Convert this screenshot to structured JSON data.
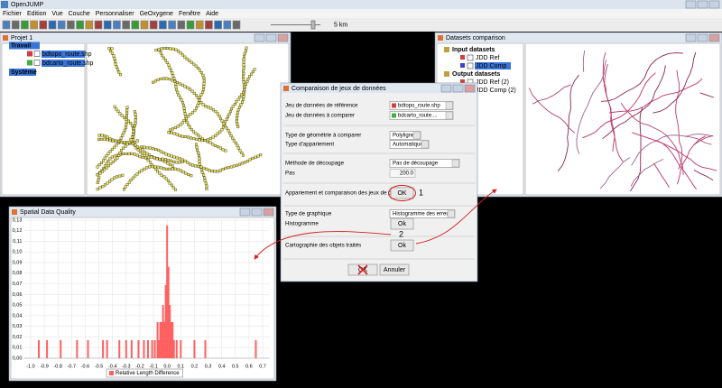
{
  "app": {
    "title": "OpenJUMP",
    "menu": [
      "Fichier",
      "Edition",
      "Vue",
      "Couche",
      "Personnaliser",
      "GeOxygene",
      "Fenêtre",
      "Aide"
    ],
    "scale_label": "5 km"
  },
  "project_window": {
    "title": "Projet 1",
    "category": "Travail",
    "layers": [
      "bdtopo_route.shp",
      "bdcarto_route.shp"
    ],
    "system": "Système"
  },
  "datasets_window": {
    "title": "Datasets comparison",
    "groups": [
      {
        "label": "Input datasets",
        "items": [
          "JDD Ref",
          "JDD Comp"
        ]
      },
      {
        "label": "Output datasets",
        "items": [
          "JDD Ref (2)",
          "JDD Comp (2)"
        ]
      }
    ]
  },
  "dialog": {
    "title": "Comparaison de jeux de données",
    "rows": [
      {
        "label": "Jeu de données de référence",
        "combo": "bdtopo_route.shp"
      },
      {
        "label": "Jeu de données à comparer",
        "combo": "bdcarto_route...."
      },
      {
        "label": "Type de géométrie à comparer",
        "combo": "Polyligne"
      },
      {
        "label": "Type d'appariement",
        "combo": "Automatique"
      },
      {
        "label": "Méthode de découpage",
        "combo": "Pas de découpage"
      },
      {
        "label": "Pas",
        "field": "200.0"
      },
      {
        "label": "Appariement et comparaison des jeux de données",
        "button": "OK"
      },
      {
        "label": "Type de graphique",
        "combo": "Histogramme des erreurs"
      },
      {
        "label": "Histogramme",
        "button": "Ok"
      },
      {
        "label": "Cartographie des objets traités",
        "button": "Ok"
      }
    ],
    "annotations": [
      "1",
      "2"
    ],
    "buttons": [
      "OK",
      "Annuler"
    ]
  },
  "chart_window": {
    "title": "Spatial Data Quality"
  },
  "chart_data": {
    "type": "bar",
    "x": [
      -0.94,
      -0.88,
      -0.78,
      -0.66,
      -0.58,
      -0.47,
      -0.44,
      -0.35,
      -0.3,
      -0.26,
      -0.21,
      -0.17,
      -0.14,
      -0.11,
      -0.09,
      -0.07,
      -0.06,
      -0.05,
      -0.04,
      -0.03,
      -0.02,
      -0.01,
      0,
      0.01,
      0.02,
      0.03,
      0.04,
      0.05,
      0.07,
      0.1,
      0.2,
      0.28,
      0.65
    ],
    "series": [
      {
        "name": "Relative Length Difference",
        "color": "#ff6060",
        "values": [
          0.017,
          0.017,
          0.017,
          0.017,
          0.017,
          0.017,
          0.017,
          0.017,
          0.017,
          0.017,
          0.017,
          0.017,
          0.017,
          0.017,
          0.017,
          0.034,
          0.017,
          0.034,
          0.034,
          0.05,
          0.034,
          0.069,
          0.125,
          0.086,
          0.05,
          0.034,
          0.034,
          0.017,
          0.017,
          0.017,
          0.017,
          0.017,
          0.017
        ]
      }
    ],
    "xlim": [
      -1.05,
      0.75
    ],
    "xticks": [
      {
        "value": -1,
        "label": "-1.0"
      },
      -0.9,
      -0.8,
      -0.7,
      -0.6,
      -0.5,
      -0.4,
      -0.3,
      -0.2,
      -0.1,
      {
        "value": 0,
        "label": "0.0"
      },
      0.1,
      0.2,
      0.3,
      0.4,
      0.5,
      0.6,
      0.7
    ],
    "ylim": [
      0,
      0.135
    ],
    "yticks": [
      {
        "value": 0,
        "label": "0,00"
      },
      {
        "value": 0.01,
        "label": "0,01"
      },
      {
        "value": 0.02,
        "label": "0,02"
      },
      {
        "value": 0.03,
        "label": "0,03"
      },
      {
        "value": 0.04,
        "label": "0,04"
      },
      {
        "value": 0.05,
        "label": "0,05"
      },
      {
        "value": 0.06,
        "label": "0,06"
      },
      {
        "value": 0.07,
        "label": "0,07"
      },
      {
        "value": 0.08,
        "label": "0,08"
      },
      {
        "value": 0.09,
        "label": "0,09"
      },
      {
        "value": 0.1,
        "label": "0,10"
      },
      {
        "value": 0.11,
        "label": "0,11"
      },
      {
        "value": 0.12,
        "label": "0,12"
      },
      {
        "value": 0.13,
        "label": "0,13"
      }
    ],
    "grid": true
  }
}
